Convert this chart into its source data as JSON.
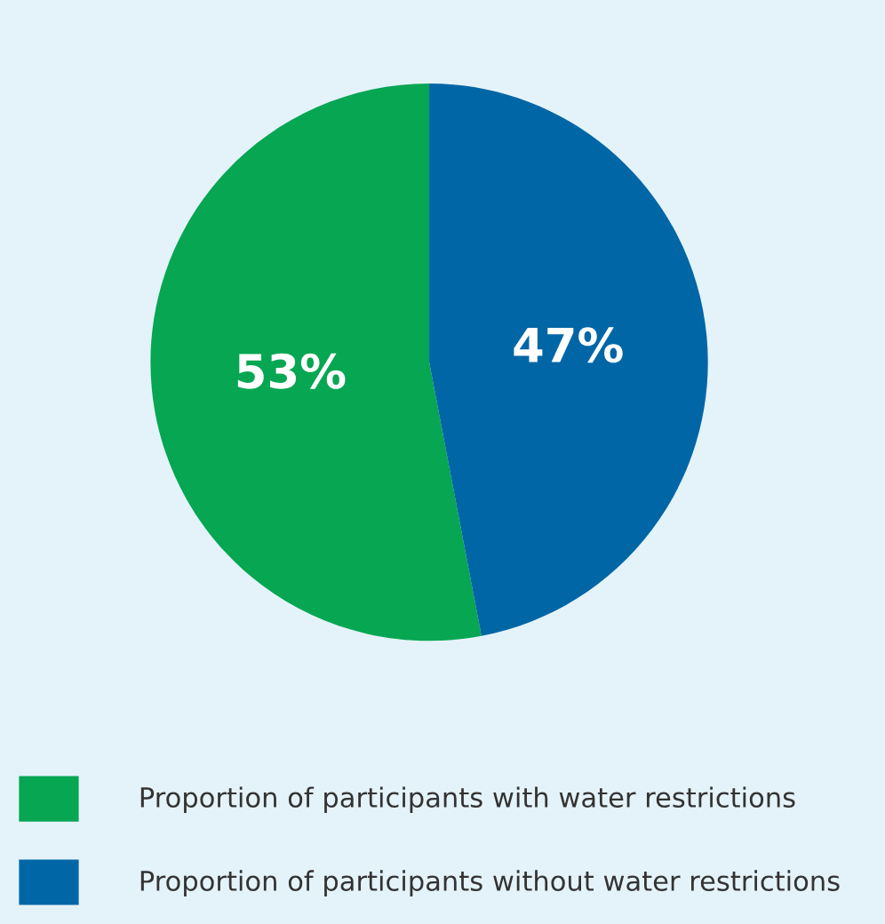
{
  "chart_data": {
    "type": "pie",
    "categories": [
      "Proportion of participants with water restrictions",
      "Proportion of participants without water restrictions"
    ],
    "values": [
      53,
      47
    ],
    "colors": [
      "#06a652",
      "#0066a6"
    ],
    "value_labels": [
      "53%",
      "47%"
    ],
    "legend": "bottom"
  }
}
